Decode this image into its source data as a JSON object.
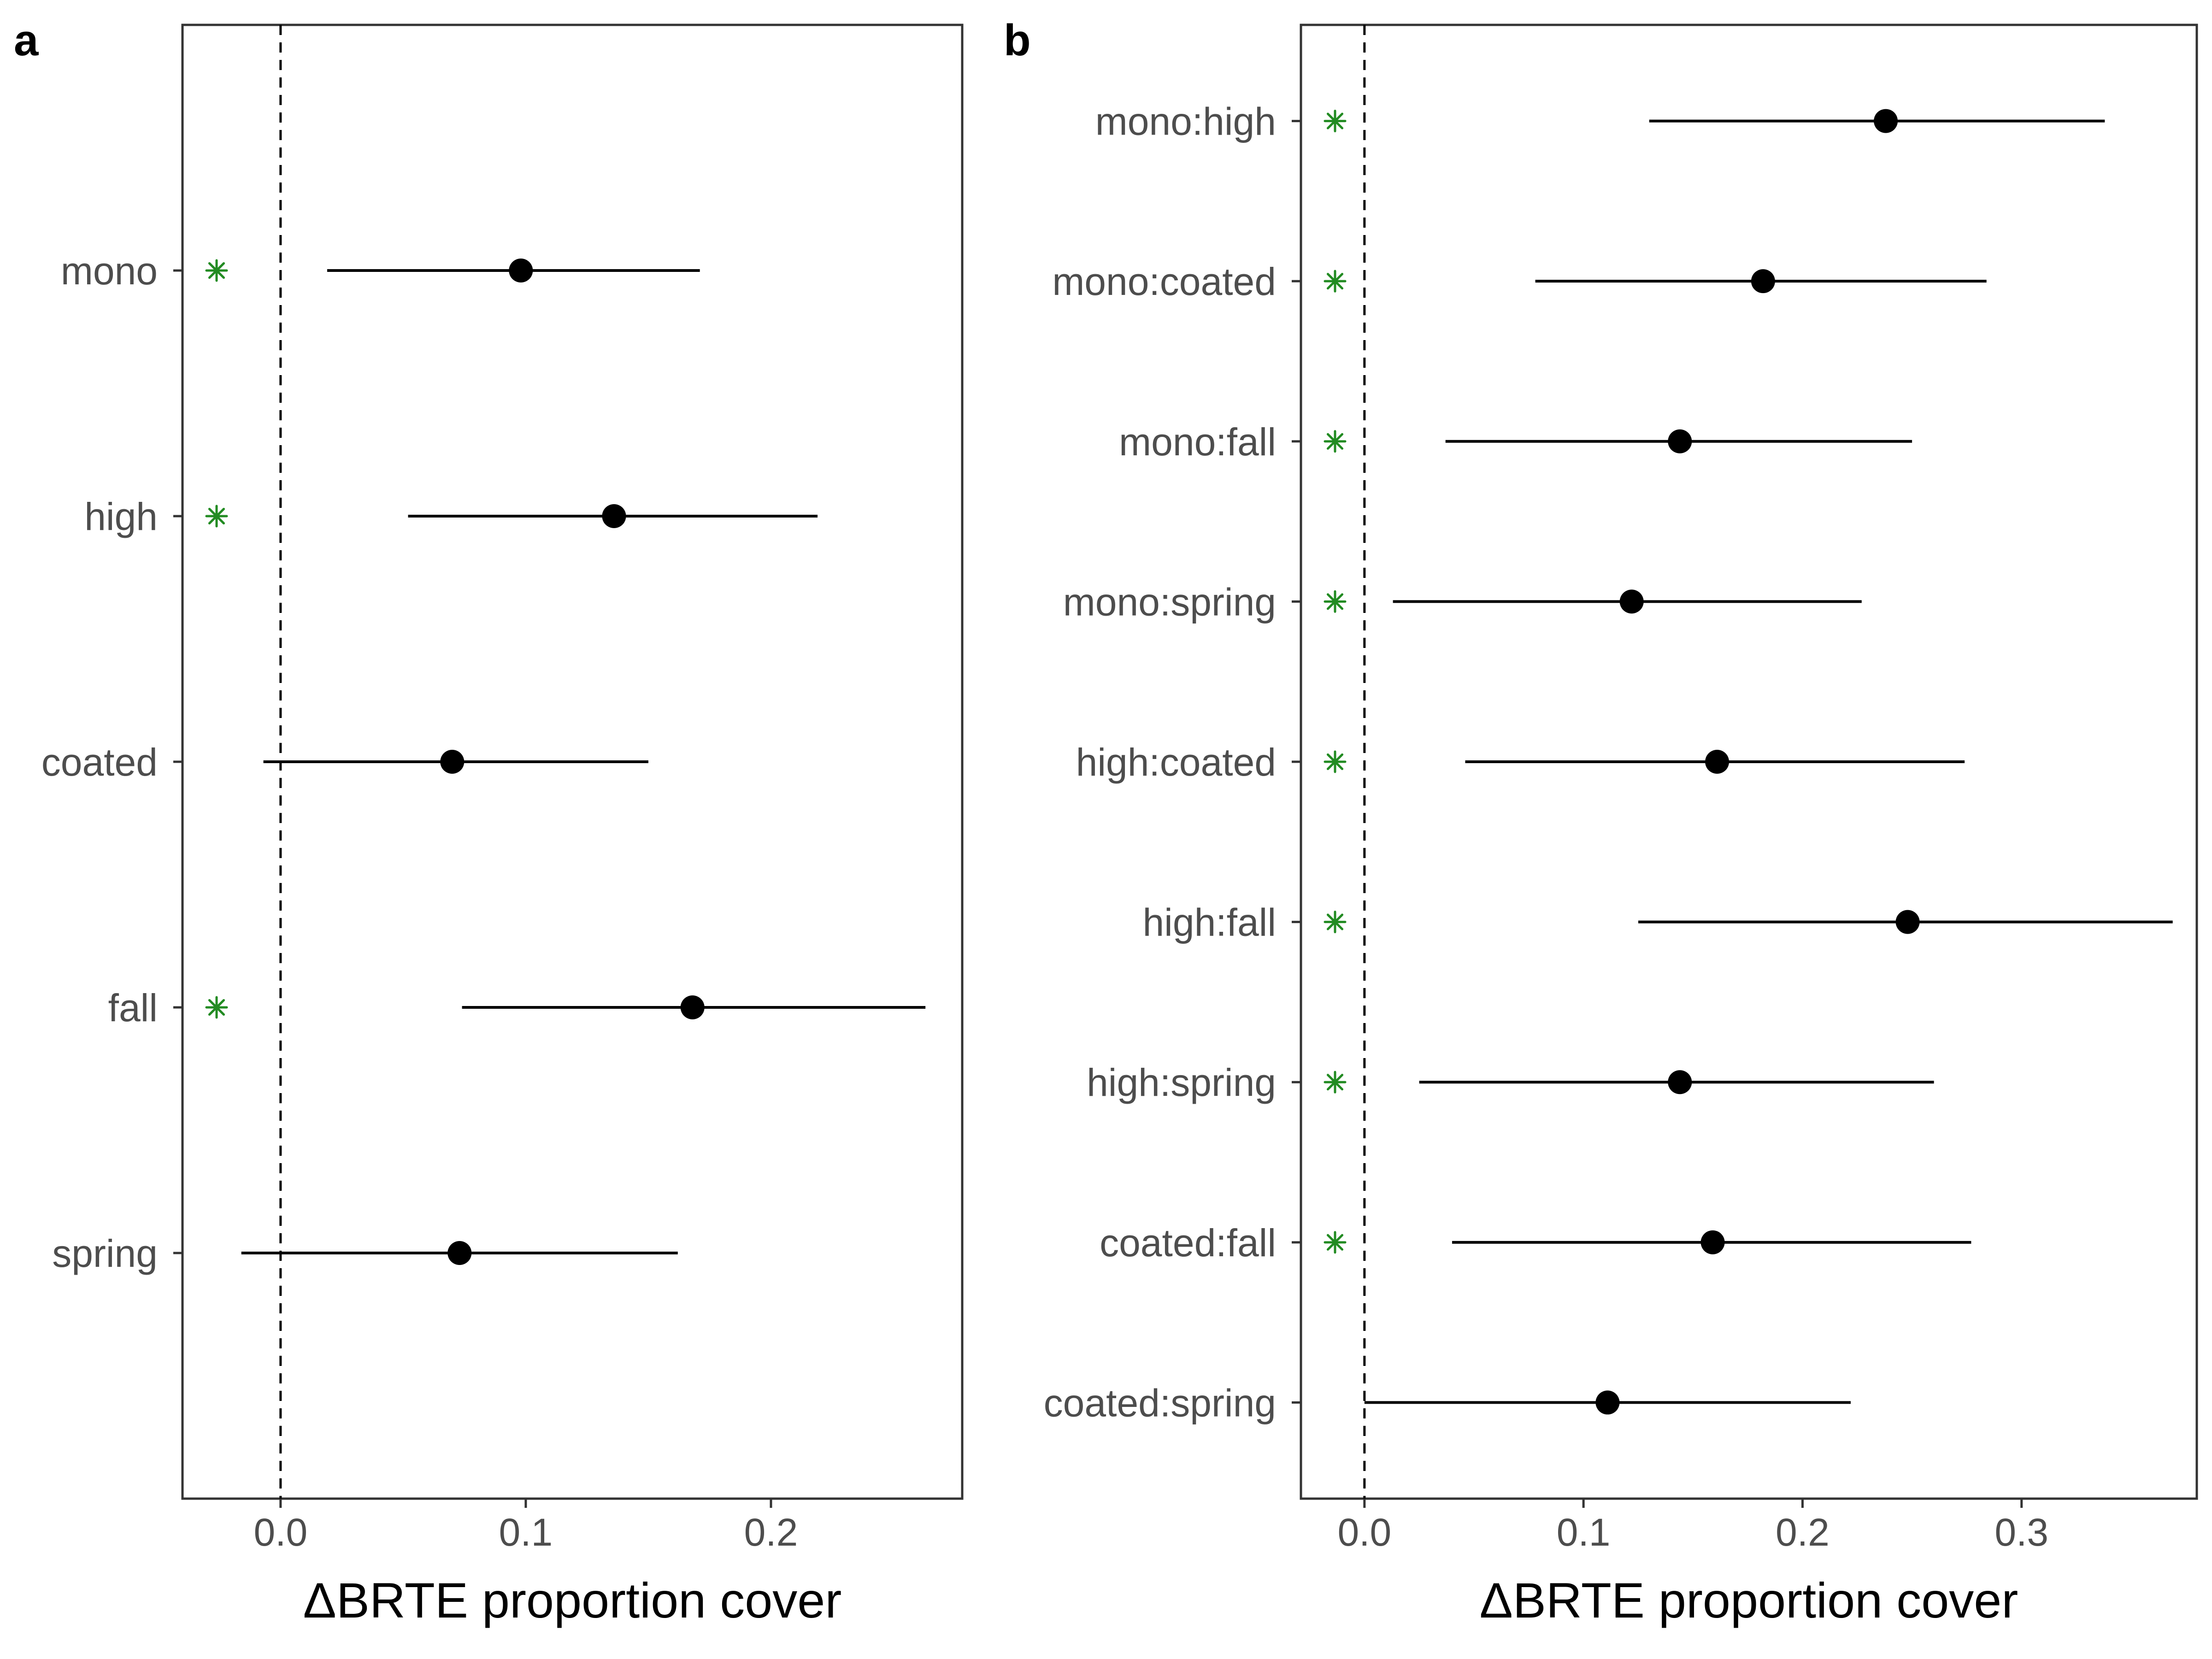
{
  "chart_data": [
    {
      "type": "scatter",
      "panel": "a",
      "xlabel": "ΔBRTE proportion cover",
      "xlim": [
        -0.04,
        0.278
      ],
      "xticks": [
        "0.0",
        "0.1",
        "0.2"
      ],
      "reference_line": 0,
      "grid": false,
      "marker_symbol": "✳",
      "marker_color": "#228B22",
      "categories": [
        "mono",
        "high",
        "coated",
        "fall",
        "spring"
      ],
      "estimate": [
        0.098,
        0.136,
        0.07,
        0.168,
        0.073
      ],
      "lower": [
        0.019,
        0.052,
        -0.007,
        0.074,
        -0.016
      ],
      "upper": [
        0.171,
        0.219,
        0.15,
        0.263,
        0.162
      ],
      "significant": [
        true,
        true,
        false,
        true,
        false
      ]
    },
    {
      "type": "scatter",
      "panel": "b",
      "xlabel": "ΔBRTE proportion cover",
      "xlim": [
        -0.029,
        0.38
      ],
      "xticks": [
        "0.0",
        "0.1",
        "0.2",
        "0.3"
      ],
      "reference_line": 0,
      "grid": false,
      "marker_symbol": "✳",
      "marker_color": "#228B22",
      "categories": [
        "mono:high",
        "mono:coated",
        "mono:fall",
        "mono:spring",
        "high:coated",
        "high:fall",
        "high:spring",
        "coated:fall",
        "coated:spring"
      ],
      "estimate": [
        0.238,
        0.182,
        0.144,
        0.122,
        0.161,
        0.248,
        0.144,
        0.159,
        0.111
      ],
      "lower": [
        0.13,
        0.078,
        0.037,
        0.013,
        0.046,
        0.125,
        0.025,
        0.04,
        0.0
      ],
      "upper": [
        0.338,
        0.284,
        0.25,
        0.227,
        0.274,
        0.369,
        0.26,
        0.277,
        0.222
      ],
      "significant": [
        true,
        true,
        true,
        true,
        true,
        true,
        true,
        true,
        false
      ]
    }
  ]
}
